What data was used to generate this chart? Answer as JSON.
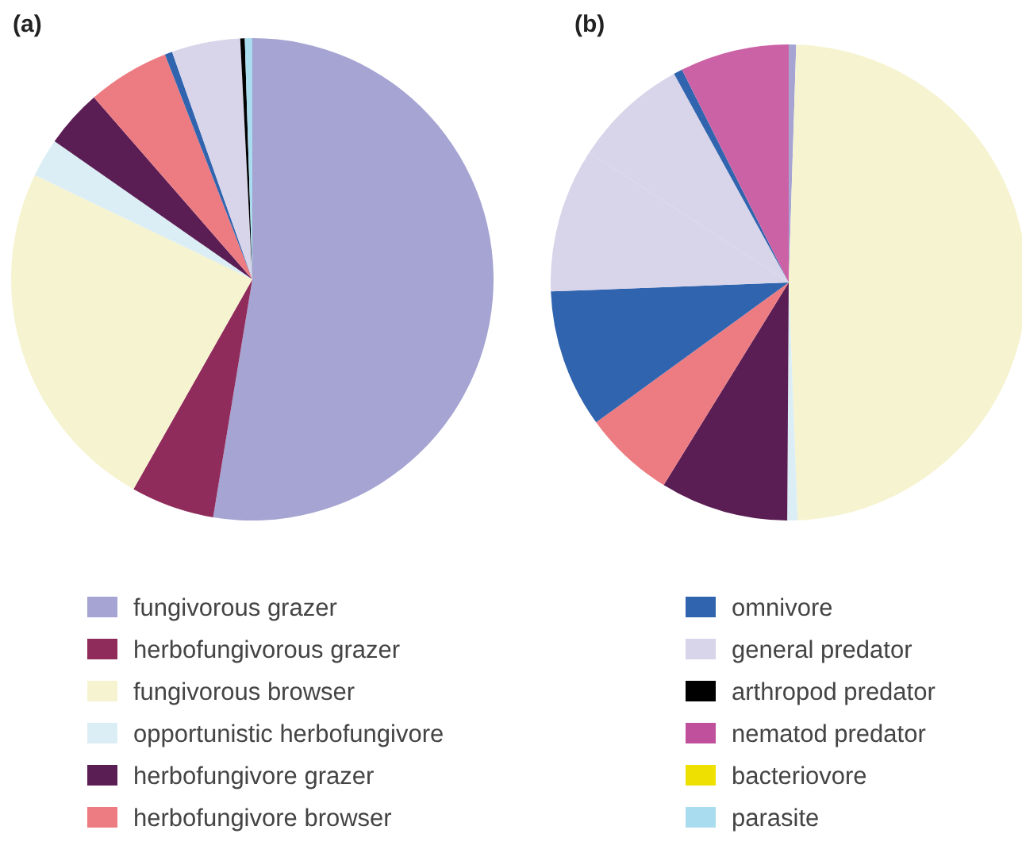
{
  "chart_data": [
    {
      "type": "pie",
      "title": "(a)",
      "legend": "bottom",
      "categories": [
        "fungivorous grazer",
        "herbofungivorous grazer",
        "fungivorous browser",
        "opportunistic herbofungivore",
        "herbofungivore grazer",
        "herbofungivore browser",
        "omnivore",
        "general predator",
        "arthropod predator",
        "nematod predator",
        "bacteriovore",
        "parasite"
      ],
      "values": [
        52.6,
        5.6,
        23.9,
        2.6,
        3.9,
        5.5,
        0.5,
        4.6,
        0.3,
        0,
        0,
        0.5
      ],
      "colors": [
        "#a5a4d2",
        "#8f2c5b",
        "#f6f3d0",
        "#dceef5",
        "#5a1e54",
        "#ed7c82",
        "#3064ae",
        "#d8d4ea",
        "#000000",
        "#c0509c",
        "#eee000",
        "#a8dcee"
      ]
    },
    {
      "type": "pie",
      "title": "(b)",
      "categories": [
        null,
        null,
        null,
        null,
        null,
        null,
        null,
        null,
        null,
        null
      ],
      "values": [
        0.5,
        48.9,
        0.7,
        8.7,
        6.2,
        9.4,
        9.8,
        7.8,
        0.6,
        7.4
      ],
      "colors": [
        "#a5a4d2",
        "#f6f3d0",
        "#dceef5",
        "#5a1e54",
        "#ed7c82",
        "#3064ae",
        "#d8d4ea",
        "#d8d4ea",
        "#3064ae",
        "#cc62a6"
      ]
    }
  ]
}
